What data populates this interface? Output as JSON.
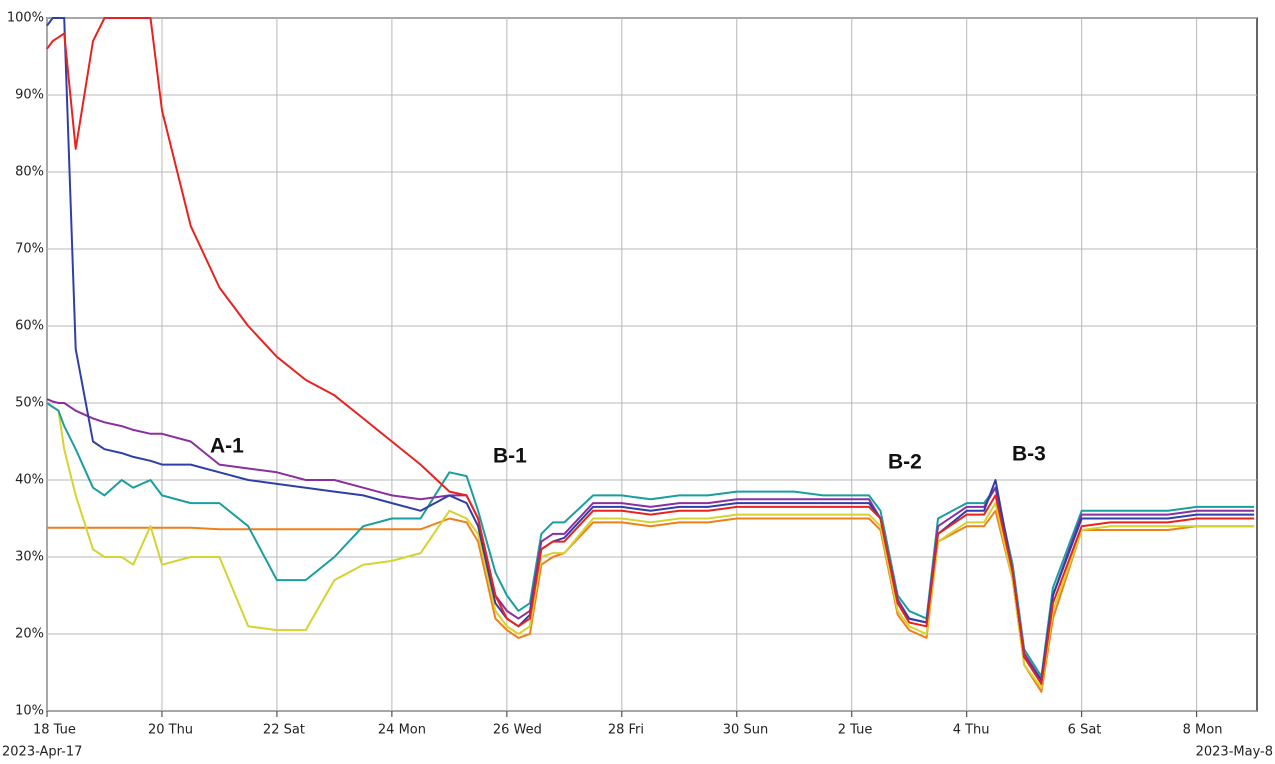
{
  "chart_data": {
    "type": "line",
    "start_label": "2023-Apr-17",
    "end_label": "2023-May-8",
    "annotations": [
      "A-1",
      "B-1",
      "B-2",
      "B-3"
    ],
    "grid": true,
    "xlim": [
      0,
      21.05
    ],
    "xticks": [
      {
        "value": 0,
        "label": "18 Tue"
      },
      {
        "value": 2,
        "label": "20 Thu"
      },
      {
        "value": 4,
        "label": "22 Sat"
      },
      {
        "value": 6,
        "label": "24 Mon"
      },
      {
        "value": 8,
        "label": "26 Wed"
      },
      {
        "value": 10,
        "label": "28 Fri"
      },
      {
        "value": 12,
        "label": "30 Sun"
      },
      {
        "value": 14,
        "label": "2 Tue"
      },
      {
        "value": 16,
        "label": "4 Thu"
      },
      {
        "value": 18,
        "label": "6 Sat"
      },
      {
        "value": 20,
        "label": "8 Mon"
      }
    ],
    "ylim": [
      10,
      100
    ],
    "yticks": [
      {
        "value": 10,
        "label": "10%"
      },
      {
        "value": 20,
        "label": "20%"
      },
      {
        "value": 30,
        "label": "30%"
      },
      {
        "value": 40,
        "label": "40%"
      },
      {
        "value": 50,
        "label": "50%"
      },
      {
        "value": 60,
        "label": "60%"
      },
      {
        "value": 70,
        "label": "70%"
      },
      {
        "value": 80,
        "label": "80%"
      },
      {
        "value": 90,
        "label": "90%"
      },
      {
        "value": 100,
        "label": "100%"
      }
    ],
    "x": [
      0,
      0.1,
      0.2,
      0.3,
      0.5,
      0.8,
      1,
      1.3,
      1.5,
      1.8,
      2,
      2.5,
      3,
      3.5,
      4,
      4.5,
      5,
      5.5,
      6,
      6.5,
      7,
      7.3,
      7.5,
      7.8,
      8,
      8.2,
      8.4,
      8.6,
      8.8,
      9,
      9.5,
      10,
      10.5,
      11,
      11.5,
      12,
      12.5,
      13,
      13.5,
      14,
      14.3,
      14.5,
      14.8,
      15,
      15.3,
      15.5,
      16,
      16.3,
      16.5,
      16.8,
      17,
      17.3,
      17.5,
      18,
      18.5,
      19,
      19.5,
      20,
      20.5,
      21
    ],
    "series": [
      {
        "color": "#f07f1a",
        "values": [
          33.8,
          33.8,
          33.8,
          33.8,
          33.8,
          33.8,
          33.8,
          33.8,
          33.8,
          33.8,
          33.8,
          33.8,
          33.6,
          33.6,
          33.6,
          33.6,
          33.6,
          33.6,
          33.6,
          33.6,
          35,
          34.5,
          32,
          22,
          20.5,
          19.5,
          20,
          29,
          30,
          30.5,
          34.5,
          34.5,
          34,
          34.5,
          34.5,
          35,
          35,
          35,
          35,
          35,
          35,
          33.5,
          22.5,
          20.5,
          19.5,
          32,
          34,
          34,
          36,
          27,
          16,
          12.5,
          22,
          33.5,
          33.5,
          33.5,
          33.5,
          34,
          34,
          34
        ]
      },
      {
        "color": "#d4d430",
        "values": [
          50,
          49.5,
          49,
          44,
          38,
          31,
          30,
          30,
          29,
          34,
          29,
          30,
          30,
          21,
          20.5,
          20.5,
          27,
          29,
          29.5,
          30.5,
          36,
          35,
          33,
          23,
          21,
          20,
          21,
          30,
          30.5,
          30.5,
          35,
          35,
          34.5,
          35,
          35,
          35.5,
          35.5,
          35.5,
          35.5,
          35.5,
          35.5,
          34,
          23,
          21,
          20,
          32,
          34.5,
          34.5,
          37,
          27,
          16,
          13,
          23,
          33.5,
          34,
          34,
          34,
          34,
          34,
          34
        ]
      },
      {
        "color": "#1a9e9e",
        "values": [
          50,
          49.5,
          49,
          47,
          44,
          39,
          38,
          40,
          39,
          40,
          38,
          37,
          37,
          34,
          27,
          27,
          30,
          34,
          35,
          35,
          41,
          40.5,
          36,
          28,
          25,
          23,
          24,
          33,
          34.5,
          34.5,
          38,
          38,
          37.5,
          38,
          38,
          38.5,
          38.5,
          38.5,
          38,
          38,
          38,
          36,
          25,
          23,
          22,
          35,
          37,
          37,
          39,
          29,
          18,
          14.5,
          26,
          36,
          36,
          36,
          36,
          36.5,
          36.5,
          36.5
        ]
      },
      {
        "color": "#8b2fa0",
        "values": [
          50.5,
          50.2,
          50,
          50,
          49,
          48,
          47.5,
          47,
          46.5,
          46,
          46,
          45,
          42,
          41.5,
          41,
          40,
          40,
          39,
          38,
          37.5,
          38,
          38,
          35,
          25,
          23,
          22,
          23,
          32,
          33,
          33,
          37,
          37,
          36.5,
          37,
          37,
          37.5,
          37.5,
          37.5,
          37.5,
          37.5,
          37.5,
          35,
          24.5,
          22,
          21.5,
          34,
          36.5,
          36.5,
          39,
          28,
          17.5,
          14,
          25,
          35.5,
          35.5,
          35.5,
          35.5,
          36,
          36,
          36
        ]
      },
      {
        "color": "#2f3fa8",
        "values": [
          99,
          100,
          100,
          100,
          57,
          45,
          44,
          43.5,
          43,
          42.5,
          42,
          42,
          41,
          40,
          39.5,
          39,
          38.5,
          38,
          37,
          36,
          38,
          37,
          34,
          24,
          22,
          21,
          22.5,
          31,
          32,
          32.5,
          36.5,
          36.5,
          36,
          36.5,
          36.5,
          37,
          37,
          37,
          37,
          37,
          37,
          35,
          24,
          22,
          21.5,
          33,
          36,
          36,
          40,
          28,
          17,
          14,
          25,
          35,
          35,
          35,
          35,
          35.5,
          35.5,
          35.5
        ]
      },
      {
        "color": "#e8231f",
        "values": [
          96,
          97,
          97.5,
          98,
          83,
          97,
          100,
          100,
          100,
          100,
          88,
          73,
          65,
          60,
          56,
          53,
          51,
          48,
          45,
          42,
          38.5,
          38,
          35,
          25,
          22,
          21,
          22,
          31,
          32,
          32,
          36,
          36,
          35.5,
          36,
          36,
          36.5,
          36.5,
          36.5,
          36.5,
          36.5,
          36.5,
          35,
          24,
          21.5,
          21,
          33,
          35.5,
          35.5,
          38,
          28,
          17,
          13.5,
          24,
          34,
          34.5,
          34.5,
          34.5,
          35,
          35,
          35
        ]
      }
    ]
  }
}
